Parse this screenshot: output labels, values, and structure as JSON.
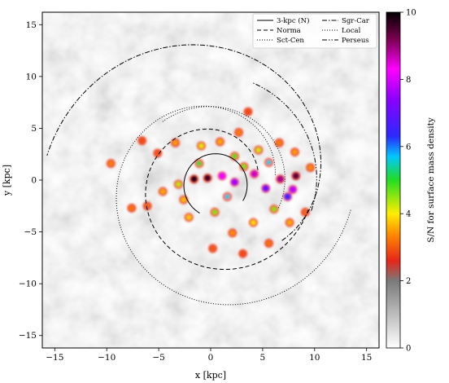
{
  "chart_data": {
    "type": "heatmap",
    "xlabel": "x [kpc]",
    "ylabel": "y [kpc]",
    "xlim": [
      -16.2,
      16.2
    ],
    "ylim": [
      -16.2,
      16.2
    ],
    "xticks": [
      -15,
      -10,
      -5,
      0,
      5,
      10,
      15
    ],
    "yticks": [
      -15,
      -10,
      -5,
      0,
      5,
      10,
      15
    ],
    "colorbar": {
      "label": "S/N for surface mass density",
      "range": [
        0,
        10
      ],
      "ticks": [
        0,
        2,
        4,
        6,
        8,
        10
      ],
      "stops": [
        {
          "v": 0,
          "color": "#ffffff"
        },
        {
          "v": 2,
          "color": "#7a7a7a"
        },
        {
          "v": 2.6,
          "color": "#e8261a"
        },
        {
          "v": 3.4,
          "color": "#ff8c00"
        },
        {
          "v": 4.0,
          "color": "#ffee00"
        },
        {
          "v": 5.0,
          "color": "#22dd22"
        },
        {
          "v": 5.7,
          "color": "#00c8ff"
        },
        {
          "v": 6.3,
          "color": "#2a2aff"
        },
        {
          "v": 7.4,
          "color": "#8a00ff"
        },
        {
          "v": 8.3,
          "color": "#ff00ff"
        },
        {
          "v": 9.2,
          "color": "#7a0050"
        },
        {
          "v": 10,
          "color": "#000000"
        }
      ]
    },
    "legend": {
      "placement": "top-right",
      "entries": [
        {
          "label": "3-kpc (N)",
          "dash": "solid"
        },
        {
          "label": "Sgr-Car",
          "dash": "dashdot"
        },
        {
          "label": "Norma",
          "dash": "dashed"
        },
        {
          "label": "Local",
          "dash": "dotted"
        },
        {
          "label": "Sct-Cen",
          "dash": "dotted"
        },
        {
          "label": "Perseus",
          "dash": "dashdotdot"
        }
      ]
    },
    "arms": [
      {
        "name": "3-kpc (N)",
        "dash": "solid",
        "cx": 0.5,
        "cy": -0.5,
        "r0": 3.0,
        "r1": 3.1,
        "t0": -30,
        "t1": 240
      },
      {
        "name": "Norma",
        "dash": "dashed",
        "cx": 0.5,
        "cy": -0.5,
        "r0": 4.3,
        "r1": 9.2,
        "t0": 20,
        "t1": 345
      },
      {
        "name": "Sct-Cen",
        "dash": "dotted",
        "cx": 0.5,
        "cy": -0.5,
        "r0": 5.8,
        "r1": 13.2,
        "t0": 10,
        "t1": 350
      },
      {
        "name": "Sgr-Car",
        "dash": "dashdot",
        "cx": 0.5,
        "cy": -0.5,
        "r0": 8.3,
        "r1": 16.5,
        "t0": -40,
        "t1": 170
      },
      {
        "name": "Local",
        "dash": "dotted",
        "cx": 0.5,
        "cy": -0.5,
        "r0": 6.4,
        "r1": 8.0,
        "t0": -20,
        "t1": 130
      },
      {
        "name": "Perseus",
        "dash": "dashdotdot",
        "cx": 0.5,
        "cy": -0.5,
        "r0": 9.5,
        "r1": 10.5,
        "t0": -15,
        "t1": 70
      }
    ],
    "clumps": [
      {
        "x": -1.6,
        "y": 0.1,
        "v": 9.8
      },
      {
        "x": -0.3,
        "y": 0.2,
        "v": 9.6
      },
      {
        "x": 1.1,
        "y": 0.4,
        "v": 8.2
      },
      {
        "x": 2.3,
        "y": -0.2,
        "v": 7.6
      },
      {
        "x": 4.2,
        "y": 0.6,
        "v": 8.6
      },
      {
        "x": 5.3,
        "y": -0.8,
        "v": 7.1
      },
      {
        "x": 6.7,
        "y": 0.1,
        "v": 8.9
      },
      {
        "x": 8.2,
        "y": 0.4,
        "v": 9.4
      },
      {
        "x": 7.4,
        "y": -1.6,
        "v": 6.4
      },
      {
        "x": 5.6,
        "y": 1.7,
        "v": 5.6
      },
      {
        "x": 3.2,
        "y": 1.3,
        "v": 4.6
      },
      {
        "x": -3.1,
        "y": -0.4,
        "v": 4.3
      },
      {
        "x": -4.6,
        "y": -1.1,
        "v": 3.6
      },
      {
        "x": -6.1,
        "y": -2.5,
        "v": 3.1
      },
      {
        "x": -7.6,
        "y": -2.7,
        "v": 3.2
      },
      {
        "x": -9.6,
        "y": 1.6,
        "v": 3.3
      },
      {
        "x": -3.4,
        "y": 3.6,
        "v": 3.5
      },
      {
        "x": -0.9,
        "y": 3.3,
        "v": 4.1
      },
      {
        "x": 0.9,
        "y": 3.7,
        "v": 3.6
      },
      {
        "x": 2.7,
        "y": 4.6,
        "v": 3.3
      },
      {
        "x": 3.6,
        "y": 6.6,
        "v": 2.9
      },
      {
        "x": -2.1,
        "y": -3.6,
        "v": 3.8
      },
      {
        "x": 0.4,
        "y": -3.1,
        "v": 4.6
      },
      {
        "x": 2.1,
        "y": -5.1,
        "v": 3.4
      },
      {
        "x": 4.1,
        "y": -4.1,
        "v": 3.9
      },
      {
        "x": 5.6,
        "y": -6.1,
        "v": 3.2
      },
      {
        "x": 7.6,
        "y": -4.1,
        "v": 3.6
      },
      {
        "x": 9.1,
        "y": -3.1,
        "v": 3.1
      },
      {
        "x": 9.6,
        "y": 1.2,
        "v": 3.4
      },
      {
        "x": -5.1,
        "y": 2.6,
        "v": 3.0
      },
      {
        "x": -6.6,
        "y": 3.8,
        "v": 2.9
      },
      {
        "x": 0.2,
        "y": -6.6,
        "v": 3.0
      },
      {
        "x": 3.1,
        "y": -7.1,
        "v": 2.9
      },
      {
        "x": 6.6,
        "y": 3.6,
        "v": 3.3
      },
      {
        "x": 8.1,
        "y": 2.7,
        "v": 3.5
      },
      {
        "x": -1.1,
        "y": 1.6,
        "v": 5.1
      },
      {
        "x": 1.6,
        "y": -1.6,
        "v": 5.6
      },
      {
        "x": 4.6,
        "y": 2.9,
        "v": 4.2
      },
      {
        "x": 6.1,
        "y": -2.8,
        "v": 4.6
      },
      {
        "x": -2.6,
        "y": -1.9,
        "v": 3.7
      },
      {
        "x": 2.3,
        "y": 2.3,
        "v": 4.8
      },
      {
        "x": 7.9,
        "y": -0.9,
        "v": 7.8
      }
    ]
  }
}
